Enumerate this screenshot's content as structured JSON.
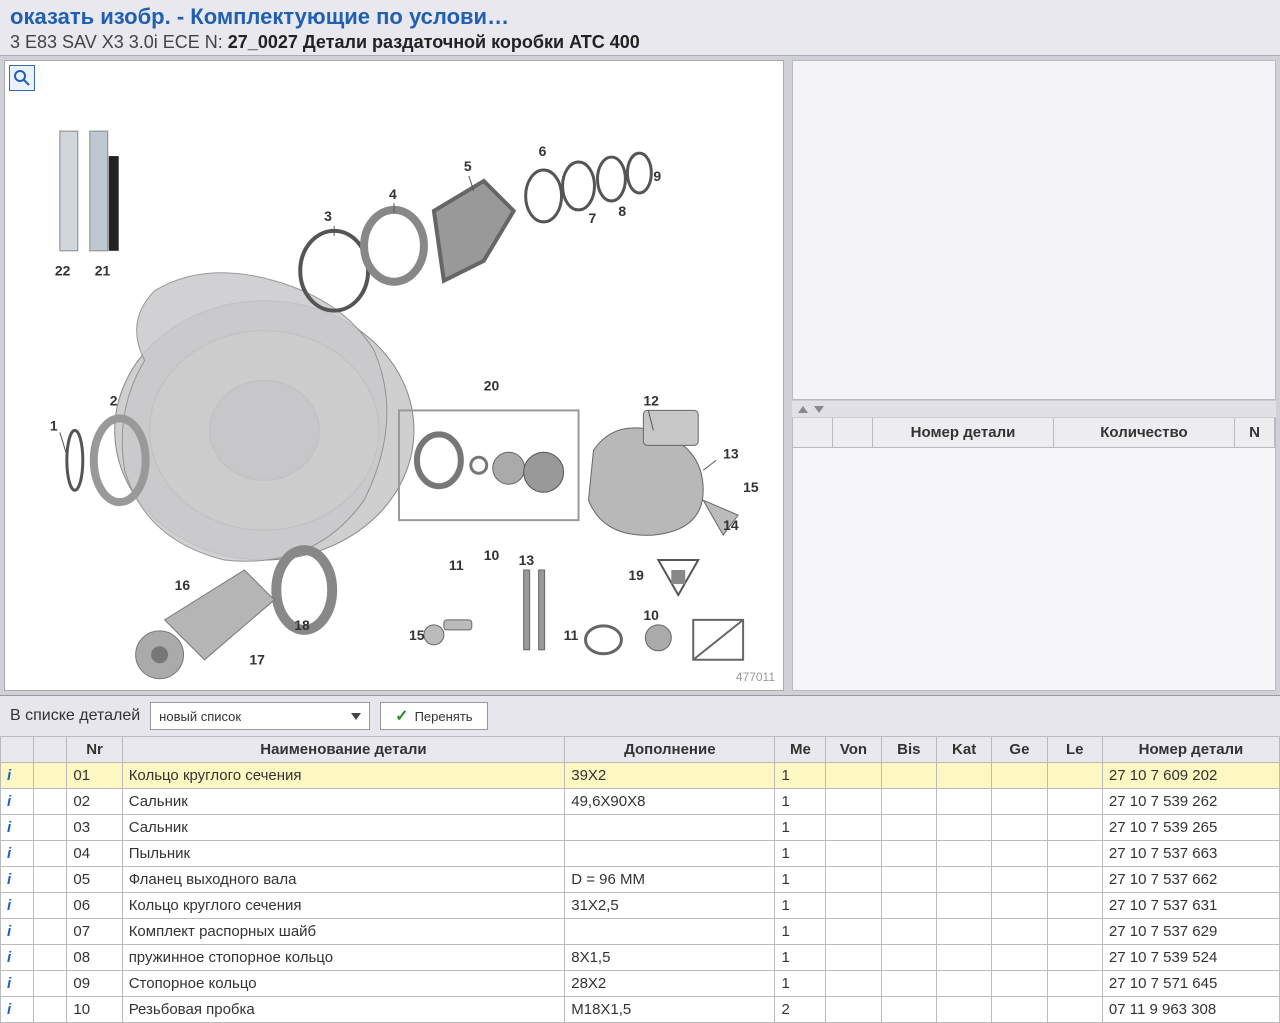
{
  "header": {
    "line1_partial": "оказать изобр. - Комплектующие по услови…",
    "vehicle_prefix": "3 E83 SAV X3 3.0i ECE  N: ",
    "doc_num": "27_0027",
    "doc_title": " Детали раздаточной коробки ATC 400"
  },
  "diagram": {
    "id": "477011",
    "callouts": [
      "1",
      "2",
      "3",
      "4",
      "5",
      "6",
      "7",
      "8",
      "9",
      "10",
      "11",
      "12",
      "13",
      "14",
      "15",
      "16",
      "17",
      "18",
      "19",
      "20",
      "21",
      "22"
    ]
  },
  "right_columns": {
    "blank1": "",
    "blank2": "",
    "part_no": "Номер детали",
    "qty": "Количество",
    "n": "N"
  },
  "toolbar": {
    "in_list": "В списке деталей",
    "select_value": "новый список",
    "apply": "Перенять"
  },
  "columns": {
    "nr": "Nr",
    "name": "Наименование детали",
    "add": "Дополнение",
    "me": "Me",
    "von": "Von",
    "bis": "Bis",
    "kat": "Kat",
    "ge": "Ge",
    "le": "Le",
    "part": "Номер детали"
  },
  "rows": [
    {
      "i": "i",
      "nr": "01",
      "name": "Кольцо круглого сечения",
      "add": "39X2",
      "me": "1",
      "part": "27 10 7 609 202",
      "hl": true
    },
    {
      "i": "i",
      "nr": "02",
      "name": "Сальник",
      "add": "49,6X90X8",
      "me": "1",
      "part": "27 10 7 539 262"
    },
    {
      "i": "i",
      "nr": "03",
      "name": "Сальник",
      "add": "",
      "me": "1",
      "part": "27 10 7 539 265"
    },
    {
      "i": "i",
      "nr": "04",
      "name": "Пыльник",
      "add": "",
      "me": "1",
      "part": "27 10 7 537 663"
    },
    {
      "i": "i",
      "nr": "05",
      "name": "Фланец выходного вала",
      "add": "D = 96 MM",
      "me": "1",
      "part": "27 10 7 537 662"
    },
    {
      "i": "i",
      "nr": "06",
      "name": "Кольцо круглого сечения",
      "add": "31X2,5",
      "me": "1",
      "part": "27 10 7 537 631"
    },
    {
      "i": "i",
      "nr": "07",
      "name": "Комплект распорных шайб",
      "add": "",
      "me": "1",
      "part": "27 10 7 537 629"
    },
    {
      "i": "i",
      "nr": "08",
      "name": "пружинное стопорное кольцо",
      "add": "8X1,5",
      "me": "1",
      "part": "27 10 7 539 524"
    },
    {
      "i": "i",
      "nr": "09",
      "name": "Стопорное кольцо",
      "add": "28X2",
      "me": "1",
      "part": "27 10 7 571 645"
    },
    {
      "i": "i",
      "nr": "10",
      "name": "Резьбовая пробка",
      "add": "M18X1,5",
      "me": "2",
      "part": "07 11 9 963 308"
    }
  ]
}
